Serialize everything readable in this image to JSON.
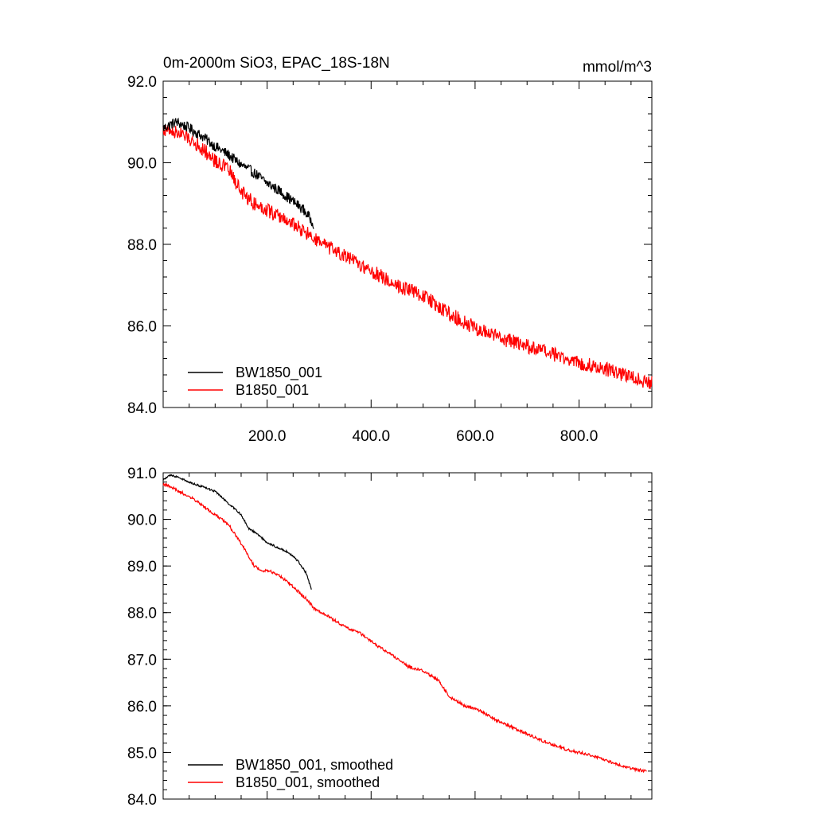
{
  "chart_data": [
    {
      "type": "line",
      "title": "0m-2000m SiO3, EPAC_18S-18N",
      "units_label": "mmol/m^3",
      "xlabel": "",
      "ylabel": "",
      "xlim": [
        0,
        940
      ],
      "ylim": [
        84.0,
        92.0
      ],
      "yticks": [
        "84.0",
        "86.0",
        "88.0",
        "90.0",
        "92.0"
      ],
      "ytick_values": [
        84,
        86,
        88,
        90,
        92
      ],
      "xticks": [
        "200.0",
        "400.0",
        "600.0",
        "800.0"
      ],
      "xtick_values": [
        200,
        400,
        600,
        800
      ],
      "legend_position": "bottom-left",
      "series": [
        {
          "name": "BW1850_001",
          "color": "#000000",
          "x": [
            0,
            25,
            50,
            75,
            100,
            125,
            150,
            175,
            200,
            225,
            250,
            270,
            290
          ],
          "values": [
            90.85,
            91.0,
            90.85,
            90.65,
            90.4,
            90.2,
            89.95,
            89.75,
            89.5,
            89.3,
            89.05,
            88.85,
            88.5
          ],
          "noise": 0.13
        },
        {
          "name": "B1850_001",
          "color": "#ff0000",
          "x": [
            0,
            25,
            50,
            75,
            100,
            125,
            150,
            175,
            200,
            250,
            300,
            350,
            400,
            450,
            500,
            550,
            600,
            650,
            700,
            750,
            800,
            850,
            900,
            940
          ],
          "values": [
            90.8,
            90.75,
            90.6,
            90.35,
            90.05,
            89.85,
            89.3,
            89.0,
            88.85,
            88.5,
            88.05,
            87.7,
            87.35,
            87.0,
            86.75,
            86.3,
            85.95,
            85.7,
            85.5,
            85.3,
            85.1,
            84.95,
            84.75,
            84.6
          ],
          "noise": 0.18
        }
      ]
    },
    {
      "type": "line",
      "title": "",
      "xlabel": "",
      "ylabel": "",
      "xlim": [
        0,
        940
      ],
      "ylim": [
        84.0,
        91.0
      ],
      "yticks": [
        "84.0",
        "85.0",
        "86.0",
        "87.0",
        "88.0",
        "89.0",
        "90.0",
        "91.0"
      ],
      "ytick_values": [
        84,
        85,
        86,
        87,
        88,
        89,
        90,
        91
      ],
      "xtick_values": [
        200,
        400,
        600,
        800
      ],
      "legend_position": "bottom-left",
      "series": [
        {
          "name": "BW1850_001, smoothed",
          "color": "#000000",
          "x": [
            0,
            15,
            30,
            50,
            75,
            100,
            125,
            150,
            165,
            180,
            200,
            220,
            240,
            260,
            275,
            285
          ],
          "values": [
            90.85,
            90.95,
            90.9,
            90.8,
            90.7,
            90.6,
            90.35,
            90.1,
            89.8,
            89.7,
            89.5,
            89.4,
            89.3,
            89.1,
            88.85,
            88.5
          ],
          "noise": 0.02
        },
        {
          "name": "B1850_001, smoothed",
          "color": "#ff0000",
          "x": [
            0,
            15,
            30,
            50,
            75,
            100,
            125,
            140,
            160,
            175,
            190,
            200,
            215,
            235,
            255,
            275,
            290,
            320,
            350,
            380,
            410,
            440,
            470,
            500,
            530,
            550,
            580,
            610,
            640,
            670,
            700,
            740,
            780,
            820,
            860,
            900,
            930
          ],
          "values": [
            90.75,
            90.7,
            90.6,
            90.5,
            90.3,
            90.1,
            89.9,
            89.65,
            89.3,
            89.0,
            88.9,
            88.9,
            88.85,
            88.7,
            88.5,
            88.3,
            88.1,
            87.9,
            87.7,
            87.55,
            87.3,
            87.1,
            86.85,
            86.75,
            86.55,
            86.2,
            86.0,
            85.9,
            85.7,
            85.55,
            85.4,
            85.2,
            85.05,
            84.95,
            84.8,
            84.65,
            84.6
          ],
          "noise": 0.03
        }
      ]
    }
  ]
}
